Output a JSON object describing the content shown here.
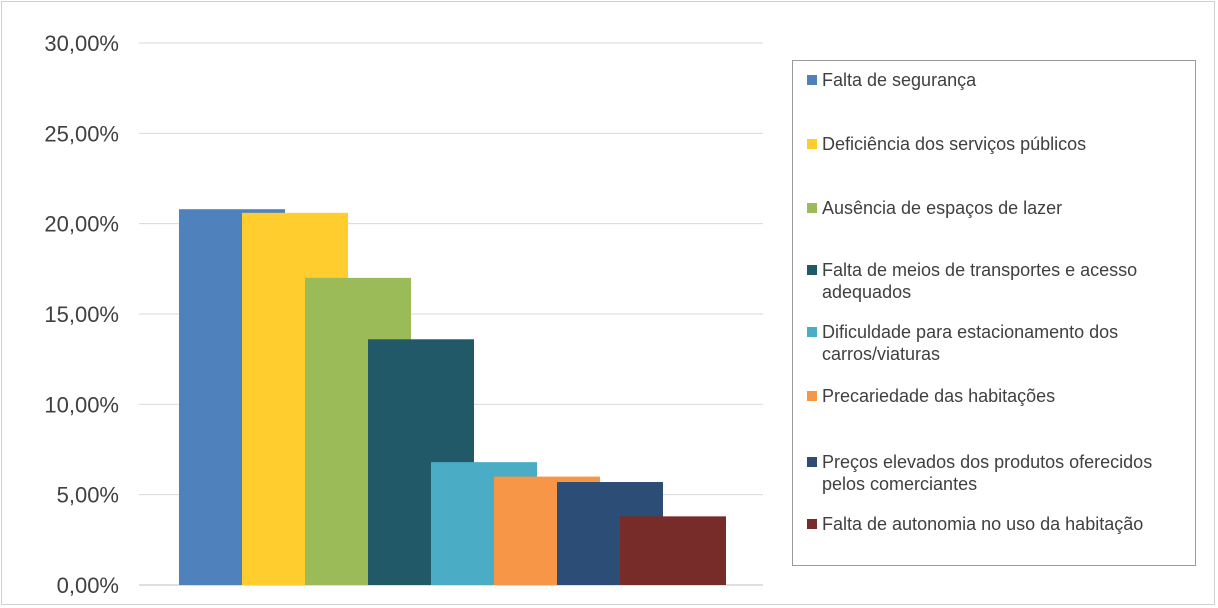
{
  "chart_data": {
    "type": "bar",
    "title": "",
    "xlabel": "",
    "ylabel": "",
    "ylim": [
      0,
      0.3
    ],
    "yticks": [
      "0,00%",
      "5,00%",
      "10,00%",
      "15,00%",
      "20,00%",
      "25,00%",
      "30,00%"
    ],
    "grid": true,
    "legend_position": "right",
    "series": [
      {
        "name": "Falta de segurança",
        "value": 0.208,
        "color": "#4F81BD"
      },
      {
        "name": "Deficiência dos serviços públicos",
        "value": 0.206,
        "color": "#FFCD2E"
      },
      {
        "name": "Ausência de espaços de lazer",
        "value": 0.17,
        "color": "#9BBB59"
      },
      {
        "name": "Falta de meios de transportes e acesso adequados",
        "value": 0.136,
        "color": "#215968"
      },
      {
        "name": "Dificuldade para estacionamento dos carros/viaturas",
        "value": 0.068,
        "color": "#4BACC6"
      },
      {
        "name": "Precariedade das habitações",
        "value": 0.06,
        "color": "#F79646"
      },
      {
        "name": "Preços elevados dos produtos oferecidos pelos comerciantes",
        "value": 0.057,
        "color": "#2C4D75"
      },
      {
        "name": "Falta de autonomia no uso da habitação",
        "value": 0.038,
        "color": "#772C2A"
      }
    ]
  },
  "colors": {
    "gridline": "#d9d9d9",
    "axis": "#bfbfbf",
    "text": "#404040"
  }
}
